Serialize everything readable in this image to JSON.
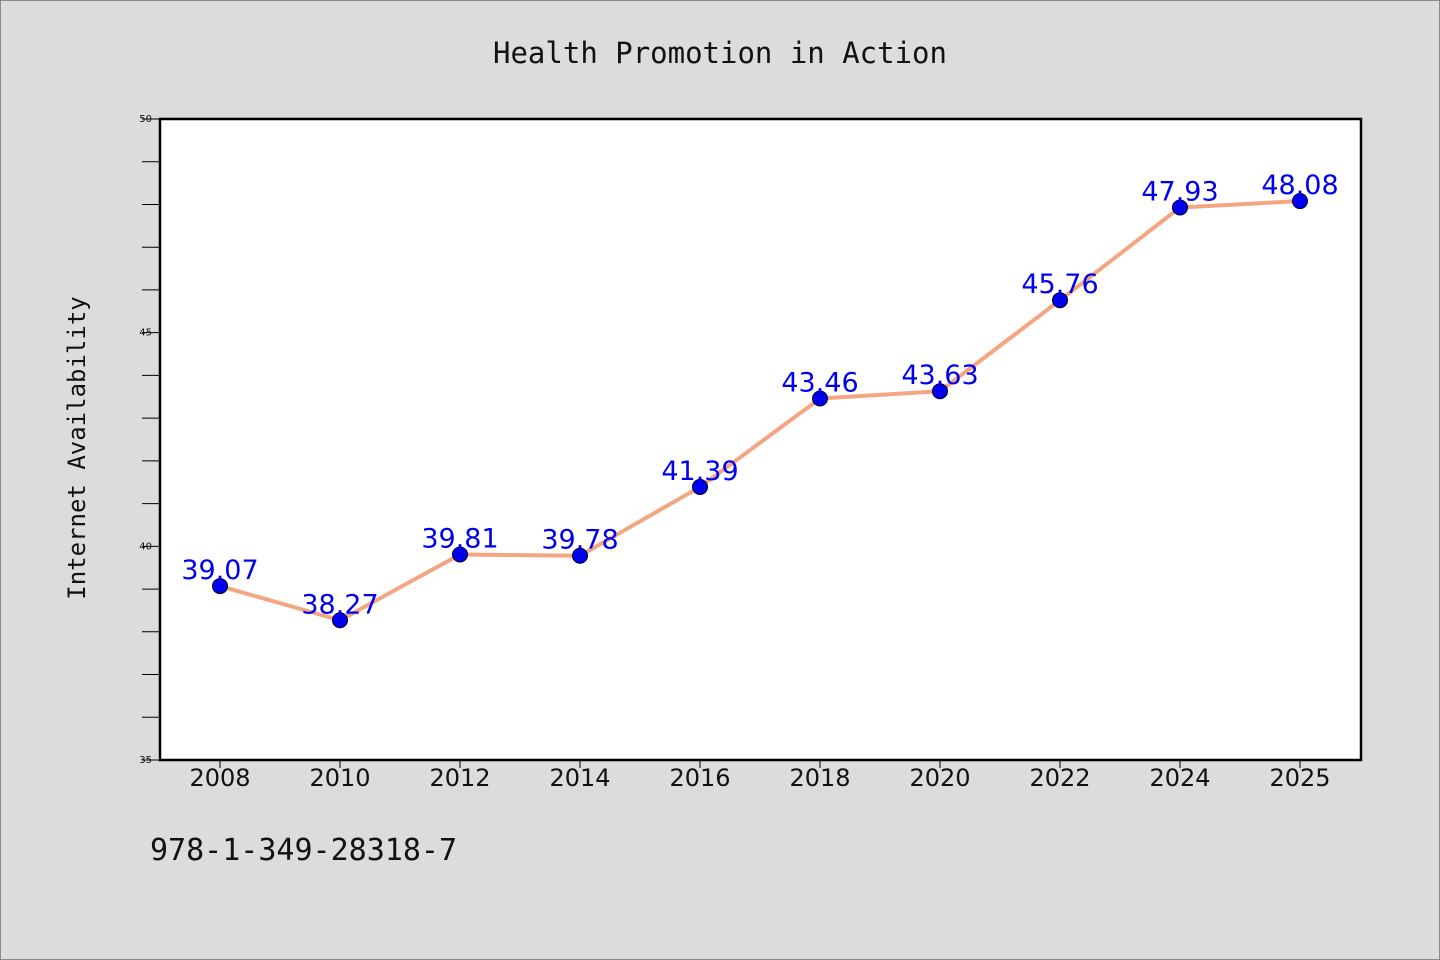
{
  "chart_data": {
    "type": "line",
    "title": "Health Promotion in Action",
    "xlabel": "",
    "ylabel": "Internet Availability",
    "categories": [
      "2008",
      "2010",
      "2012",
      "2014",
      "2016",
      "2018",
      "2020",
      "2022",
      "2024",
      "2025"
    ],
    "values": [
      39.07,
      38.27,
      39.81,
      39.78,
      41.39,
      43.46,
      43.63,
      45.76,
      47.93,
      48.08
    ],
    "value_labels": [
      "39.07",
      "38.27",
      "39.81",
      "39.78",
      "41.39",
      "43.46",
      "43.63",
      "45.76",
      "47.93",
      "48.08"
    ],
    "ylim": [
      35,
      50
    ],
    "yticks": [
      "35",
      "40",
      "45",
      "50"
    ],
    "grid": false,
    "colors": {
      "line": "#f4a582",
      "marker": "#0000ee",
      "label": "#0000ee",
      "plot_background": "#ffffff",
      "page_background": "#dcdcdc"
    }
  },
  "footer": {
    "code": "978-1-349-28318-7"
  }
}
